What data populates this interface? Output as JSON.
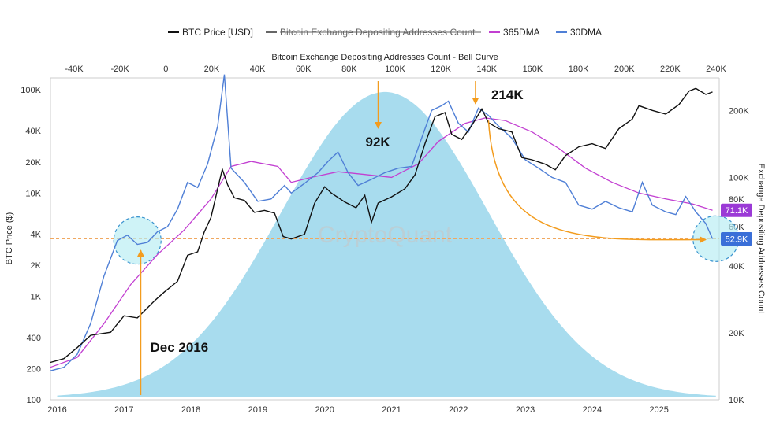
{
  "chart_data": {
    "type": "line",
    "legend": {
      "placement": "top-center",
      "items": [
        {
          "label": "BTC Price [USD]",
          "color": "#111111",
          "struck": false
        },
        {
          "label": "Bitcoin Exchange Depositing Addresses Count",
          "color": "#666666",
          "struck": true
        },
        {
          "label": "365DMA",
          "color": "#c23fd1",
          "struck": false
        },
        {
          "label": "30DMA",
          "color": "#4f7fd6",
          "struck": false
        }
      ]
    },
    "top_axis": {
      "title": "Bitcoin Exchange Depositing Addresses Count - Bell Curve",
      "min": -40000,
      "max": 240000,
      "ticks": [
        "-40K",
        "-20K",
        "0",
        "20K",
        "40K",
        "60K",
        "80K",
        "100K",
        "120K",
        "140K",
        "160K",
        "180K",
        "200K",
        "220K",
        "240K"
      ]
    },
    "x_axis": {
      "range": [
        2015.4,
        2025.4
      ],
      "ticks": [
        "2016",
        "2017",
        "2018",
        "2019",
        "2020",
        "2021",
        "2022",
        "2023",
        "2024",
        "2025"
      ]
    },
    "left_axis": {
      "title": "BTC Price ($)",
      "scale": "log",
      "range": [
        100,
        130000
      ],
      "ticks": [
        {
          "label": "100",
          "value": 100
        },
        {
          "label": "200",
          "value": 200
        },
        {
          "label": "400",
          "value": 400
        },
        {
          "label": "1K",
          "value": 1000
        },
        {
          "label": "2K",
          "value": 2000
        },
        {
          "label": "4K",
          "value": 4000
        },
        {
          "label": "10K",
          "value": 10000
        },
        {
          "label": "20K",
          "value": 20000
        },
        {
          "label": "40K",
          "value": 40000
        },
        {
          "label": "100K",
          "value": 100000
        }
      ]
    },
    "right_axis": {
      "title": "Exchange Depositing Addresses Count",
      "scale": "log",
      "range": [
        10000,
        280000
      ],
      "ticks": [
        {
          "label": "10K",
          "value": 10000
        },
        {
          "label": "20K",
          "value": 20000
        },
        {
          "label": "40K",
          "value": 40000
        },
        {
          "label": "60K",
          "value": 60000
        },
        {
          "label": "80K",
          "value": 80000
        },
        {
          "label": "100K",
          "value": 100000
        },
        {
          "label": "200K",
          "value": 200000
        }
      ]
    },
    "bell_curve": {
      "color": "#a8dcee",
      "peak_x": 2020.4,
      "sigma_years": 1.55,
      "base_price": 105,
      "peak_price": 95000
    },
    "series": [
      {
        "name": "BTC Price [USD]",
        "axis": "left",
        "color": "#111111",
        "points": [
          [
            2015.4,
            230
          ],
          [
            2015.6,
            250
          ],
          [
            2015.8,
            320
          ],
          [
            2016.0,
            420
          ],
          [
            2016.3,
            450
          ],
          [
            2016.5,
            650
          ],
          [
            2016.7,
            620
          ],
          [
            2016.95,
            900
          ],
          [
            2017.1,
            1100
          ],
          [
            2017.3,
            1400
          ],
          [
            2017.45,
            2500
          ],
          [
            2017.6,
            2700
          ],
          [
            2017.7,
            4200
          ],
          [
            2017.8,
            5800
          ],
          [
            2017.9,
            11000
          ],
          [
            2017.97,
            17000
          ],
          [
            2018.05,
            12000
          ],
          [
            2018.15,
            9000
          ],
          [
            2018.3,
            8500
          ],
          [
            2018.45,
            6500
          ],
          [
            2018.6,
            6800
          ],
          [
            2018.75,
            6400
          ],
          [
            2018.88,
            3800
          ],
          [
            2019.0,
            3600
          ],
          [
            2019.2,
            4000
          ],
          [
            2019.35,
            8000
          ],
          [
            2019.5,
            11500
          ],
          [
            2019.6,
            10000
          ],
          [
            2019.8,
            8200
          ],
          [
            2019.97,
            7200
          ],
          [
            2020.1,
            9500
          ],
          [
            2020.2,
            5200
          ],
          [
            2020.3,
            8000
          ],
          [
            2020.5,
            9200
          ],
          [
            2020.7,
            11000
          ],
          [
            2020.85,
            15000
          ],
          [
            2021.0,
            30000
          ],
          [
            2021.15,
            55000
          ],
          [
            2021.3,
            60000
          ],
          [
            2021.4,
            37000
          ],
          [
            2021.55,
            33000
          ],
          [
            2021.7,
            45000
          ],
          [
            2021.85,
            65000
          ],
          [
            2021.95,
            48000
          ],
          [
            2022.1,
            42000
          ],
          [
            2022.3,
            39000
          ],
          [
            2022.45,
            22000
          ],
          [
            2022.6,
            21000
          ],
          [
            2022.8,
            19000
          ],
          [
            2022.95,
            16800
          ],
          [
            2023.1,
            23000
          ],
          [
            2023.3,
            28000
          ],
          [
            2023.5,
            30000
          ],
          [
            2023.7,
            27000
          ],
          [
            2023.9,
            42000
          ],
          [
            2024.1,
            52000
          ],
          [
            2024.2,
            70000
          ],
          [
            2024.4,
            63000
          ],
          [
            2024.6,
            58000
          ],
          [
            2024.8,
            72000
          ],
          [
            2024.95,
            97000
          ],
          [
            2025.05,
            103000
          ],
          [
            2025.2,
            90000
          ],
          [
            2025.3,
            95000
          ]
        ]
      },
      {
        "name": "30DMA",
        "axis": "right",
        "color": "#4f7fd6",
        "points": [
          [
            2015.4,
            13500
          ],
          [
            2015.6,
            14000
          ],
          [
            2015.8,
            16000
          ],
          [
            2016.0,
            22000
          ],
          [
            2016.2,
            36000
          ],
          [
            2016.4,
            52000
          ],
          [
            2016.55,
            55000
          ],
          [
            2016.7,
            50000
          ],
          [
            2016.85,
            51000
          ],
          [
            2017.0,
            57000
          ],
          [
            2017.15,
            60000
          ],
          [
            2017.3,
            72000
          ],
          [
            2017.45,
            95000
          ],
          [
            2017.6,
            90000
          ],
          [
            2017.75,
            115000
          ],
          [
            2017.9,
            170000
          ],
          [
            2018.0,
            290000
          ],
          [
            2018.1,
            110000
          ],
          [
            2018.3,
            95000
          ],
          [
            2018.5,
            78000
          ],
          [
            2018.7,
            80000
          ],
          [
            2018.9,
            92000
          ],
          [
            2019.0,
            85000
          ],
          [
            2019.2,
            94000
          ],
          [
            2019.4,
            105000
          ],
          [
            2019.55,
            118000
          ],
          [
            2019.7,
            130000
          ],
          [
            2019.85,
            105000
          ],
          [
            2020.0,
            92000
          ],
          [
            2020.2,
            98000
          ],
          [
            2020.4,
            105000
          ],
          [
            2020.6,
            110000
          ],
          [
            2020.8,
            112000
          ],
          [
            2020.95,
            150000
          ],
          [
            2021.1,
            200000
          ],
          [
            2021.25,
            210000
          ],
          [
            2021.35,
            220000
          ],
          [
            2021.5,
            175000
          ],
          [
            2021.65,
            160000
          ],
          [
            2021.8,
            205000
          ],
          [
            2021.95,
            190000
          ],
          [
            2022.1,
            170000
          ],
          [
            2022.3,
            150000
          ],
          [
            2022.5,
            120000
          ],
          [
            2022.7,
            110000
          ],
          [
            2022.9,
            100000
          ],
          [
            2023.1,
            95000
          ],
          [
            2023.3,
            75000
          ],
          [
            2023.5,
            72000
          ],
          [
            2023.7,
            78000
          ],
          [
            2023.9,
            73000
          ],
          [
            2024.1,
            70000
          ],
          [
            2024.25,
            95000
          ],
          [
            2024.4,
            75000
          ],
          [
            2024.6,
            70000
          ],
          [
            2024.75,
            68000
          ],
          [
            2024.9,
            82000
          ],
          [
            2025.05,
            70000
          ],
          [
            2025.2,
            62000
          ],
          [
            2025.3,
            52900
          ]
        ]
      },
      {
        "name": "365DMA",
        "axis": "right",
        "color": "#c23fd1",
        "points": [
          [
            2015.4,
            14000
          ],
          [
            2015.8,
            15500
          ],
          [
            2016.2,
            22000
          ],
          [
            2016.6,
            33000
          ],
          [
            2017.0,
            45000
          ],
          [
            2017.4,
            58000
          ],
          [
            2017.8,
            80000
          ],
          [
            2018.1,
            112000
          ],
          [
            2018.4,
            118000
          ],
          [
            2018.8,
            112000
          ],
          [
            2019.0,
            95000
          ],
          [
            2019.3,
            100000
          ],
          [
            2019.7,
            106000
          ],
          [
            2020.1,
            103000
          ],
          [
            2020.5,
            100000
          ],
          [
            2020.9,
            115000
          ],
          [
            2021.2,
            145000
          ],
          [
            2021.6,
            175000
          ],
          [
            2021.9,
            185000
          ],
          [
            2022.2,
            180000
          ],
          [
            2022.6,
            160000
          ],
          [
            2023.0,
            135000
          ],
          [
            2023.4,
            110000
          ],
          [
            2023.8,
            95000
          ],
          [
            2024.2,
            85000
          ],
          [
            2024.6,
            80000
          ],
          [
            2025.0,
            76000
          ],
          [
            2025.3,
            71100
          ]
        ]
      }
    ],
    "annotations": {
      "ref_level": 52900,
      "items": [
        {
          "text": "Dec 2016",
          "x": 2016.75
        },
        {
          "text": "92K",
          "x": 2020.3
        },
        {
          "text": "214K",
          "x": 2021.85
        }
      ],
      "badges": [
        {
          "text": "71.1K",
          "value": 71100,
          "color": "#9b3ad6"
        },
        {
          "text": "52.9K",
          "value": 52900,
          "color": "#3a6fd8"
        }
      ]
    },
    "watermark": "CryptoQuant",
    "grid": false
  }
}
